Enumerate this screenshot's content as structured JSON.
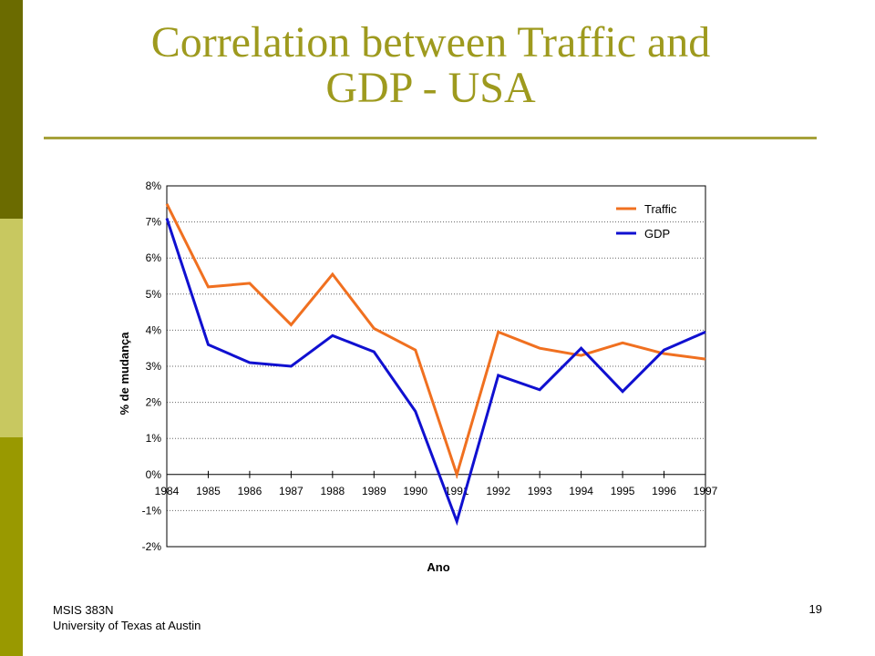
{
  "slide": {
    "title_line1": "Correlation between Traffic and",
    "title_line2": "GDP - USA",
    "footer_line1": "MSIS 383N",
    "footer_line2": "University of Texas at Austin",
    "page_number": "19"
  },
  "colors": {
    "title": "#9e9a1e",
    "traffic": "#f07020",
    "gdp": "#1010d0",
    "sidebar_dark": "#6b6b00",
    "sidebar_light": "#c8c860",
    "sidebar_mid": "#999900"
  },
  "chart_data": {
    "type": "line",
    "title": "",
    "xlabel": "Ano",
    "ylabel": "% de mudança",
    "x": [
      "1984",
      "1985",
      "1986",
      "1987",
      "1988",
      "1989",
      "1990",
      "1991",
      "1992",
      "1993",
      "1994",
      "1995",
      "1996",
      "1997"
    ],
    "y_ticks": [
      "8%",
      "7%",
      "6%",
      "5%",
      "4%",
      "3%",
      "2%",
      "1%",
      "0%",
      "-1%",
      "-2%"
    ],
    "ylim": [
      -2,
      8
    ],
    "grid": "horizontal dotted",
    "legend_position": "top-right",
    "series": [
      {
        "name": "Traffic",
        "color": "#f07020",
        "values": [
          7.5,
          5.2,
          5.3,
          4.15,
          5.55,
          4.05,
          3.45,
          0.0,
          3.95,
          3.5,
          3.3,
          3.65,
          3.35,
          3.2
        ]
      },
      {
        "name": "GDP",
        "color": "#1010d0",
        "values": [
          7.1,
          3.6,
          3.1,
          3.0,
          3.85,
          3.4,
          1.75,
          -1.3,
          2.75,
          2.35,
          3.5,
          2.3,
          3.45,
          3.95
        ]
      }
    ]
  }
}
